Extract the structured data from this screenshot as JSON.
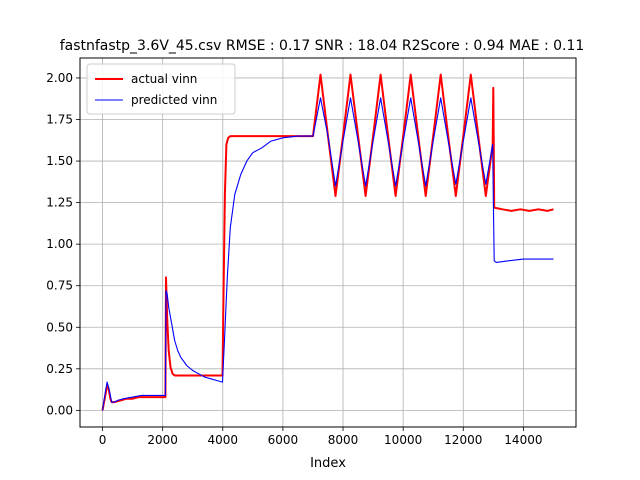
{
  "chart_data": {
    "type": "line",
    "title": "fastnfastp_3.6V_45.csv RMSE : 0.17  SNR : 18.04 R2Score : 0.94 MAE : 0.11",
    "xlabel": "Index",
    "ylabel": "",
    "xlim": [
      -750,
      15750
    ],
    "ylim": [
      -0.1,
      2.12
    ],
    "xticks": [
      0,
      2000,
      4000,
      6000,
      8000,
      10000,
      12000,
      14000
    ],
    "yticks": [
      0.0,
      0.25,
      0.5,
      0.75,
      1.0,
      1.25,
      1.5,
      1.75,
      2.0
    ],
    "xtick_labels": [
      "0",
      "2000",
      "4000",
      "6000",
      "8000",
      "10000",
      "12000",
      "14000"
    ],
    "ytick_labels": [
      "0.00",
      "0.25",
      "0.50",
      "0.75",
      "1.00",
      "1.25",
      "1.50",
      "1.75",
      "2.00"
    ],
    "grid": true,
    "legend_position": "top-left",
    "series": [
      {
        "name": "actual vinn",
        "color": "#ff0000",
        "x": [
          0,
          80,
          150,
          200,
          260,
          300,
          400,
          600,
          800,
          1000,
          1200,
          1400,
          1600,
          1800,
          2000,
          2090,
          2110,
          2150,
          2200,
          2260,
          2330,
          2400,
          2500,
          2700,
          3000,
          3500,
          3990,
          4020,
          4070,
          4120,
          4180,
          4250,
          4350,
          4500,
          5000,
          5500,
          6000,
          6500,
          7000,
          7250,
          7500,
          7750,
          8000,
          8250,
          8500,
          8750,
          9000,
          9250,
          9500,
          9750,
          10000,
          10250,
          10500,
          10750,
          11000,
          11250,
          11500,
          11750,
          12000,
          12250,
          12500,
          12750,
          12980,
          13000,
          13030,
          13300,
          13600,
          13900,
          14200,
          14500,
          14800,
          15000
        ],
        "y": [
          0.0,
          0.08,
          0.15,
          0.13,
          0.07,
          0.05,
          0.05,
          0.06,
          0.07,
          0.07,
          0.08,
          0.08,
          0.08,
          0.08,
          0.08,
          0.08,
          0.8,
          0.55,
          0.36,
          0.26,
          0.22,
          0.21,
          0.21,
          0.21,
          0.21,
          0.21,
          0.21,
          0.65,
          1.3,
          1.6,
          1.64,
          1.65,
          1.65,
          1.65,
          1.65,
          1.65,
          1.65,
          1.65,
          1.65,
          2.02,
          1.65,
          1.29,
          1.65,
          2.02,
          1.65,
          1.29,
          1.65,
          2.02,
          1.65,
          1.29,
          1.65,
          2.02,
          1.65,
          1.29,
          1.65,
          2.02,
          1.65,
          1.29,
          1.65,
          2.02,
          1.65,
          1.29,
          1.6,
          1.94,
          1.22,
          1.21,
          1.2,
          1.21,
          1.2,
          1.21,
          1.2,
          1.21
        ]
      },
      {
        "name": "predicted vinn",
        "color": "#0000ff",
        "x": [
          0,
          100,
          150,
          200,
          250,
          300,
          400,
          500,
          700,
          1000,
          1300,
          1600,
          1900,
          2090,
          2110,
          2150,
          2200,
          2300,
          2400,
          2500,
          2600,
          2800,
          3000,
          3200,
          3400,
          3600,
          3800,
          3990,
          4050,
          4150,
          4250,
          4400,
          4600,
          4800,
          5000,
          5300,
          5600,
          6000,
          6500,
          7000,
          7250,
          7500,
          7750,
          8000,
          8250,
          8500,
          8750,
          9000,
          9250,
          9500,
          9750,
          10000,
          10250,
          10500,
          10750,
          11000,
          11250,
          11500,
          11750,
          12000,
          12250,
          12500,
          12750,
          12980,
          13000,
          13030,
          13100,
          13500,
          14000,
          14500,
          15000
        ],
        "y": [
          0.0,
          0.12,
          0.17,
          0.14,
          0.1,
          0.05,
          0.05,
          0.06,
          0.07,
          0.08,
          0.09,
          0.09,
          0.09,
          0.09,
          0.72,
          0.7,
          0.62,
          0.52,
          0.42,
          0.36,
          0.32,
          0.27,
          0.24,
          0.22,
          0.2,
          0.19,
          0.18,
          0.17,
          0.4,
          0.8,
          1.1,
          1.3,
          1.42,
          1.5,
          1.55,
          1.58,
          1.62,
          1.64,
          1.65,
          1.65,
          1.88,
          1.65,
          1.35,
          1.62,
          1.88,
          1.62,
          1.35,
          1.62,
          1.88,
          1.62,
          1.35,
          1.62,
          1.88,
          1.62,
          1.35,
          1.62,
          1.88,
          1.62,
          1.36,
          1.62,
          1.88,
          1.62,
          1.36,
          1.6,
          1.28,
          0.9,
          0.89,
          0.9,
          0.91,
          0.91,
          0.91
        ]
      }
    ]
  }
}
